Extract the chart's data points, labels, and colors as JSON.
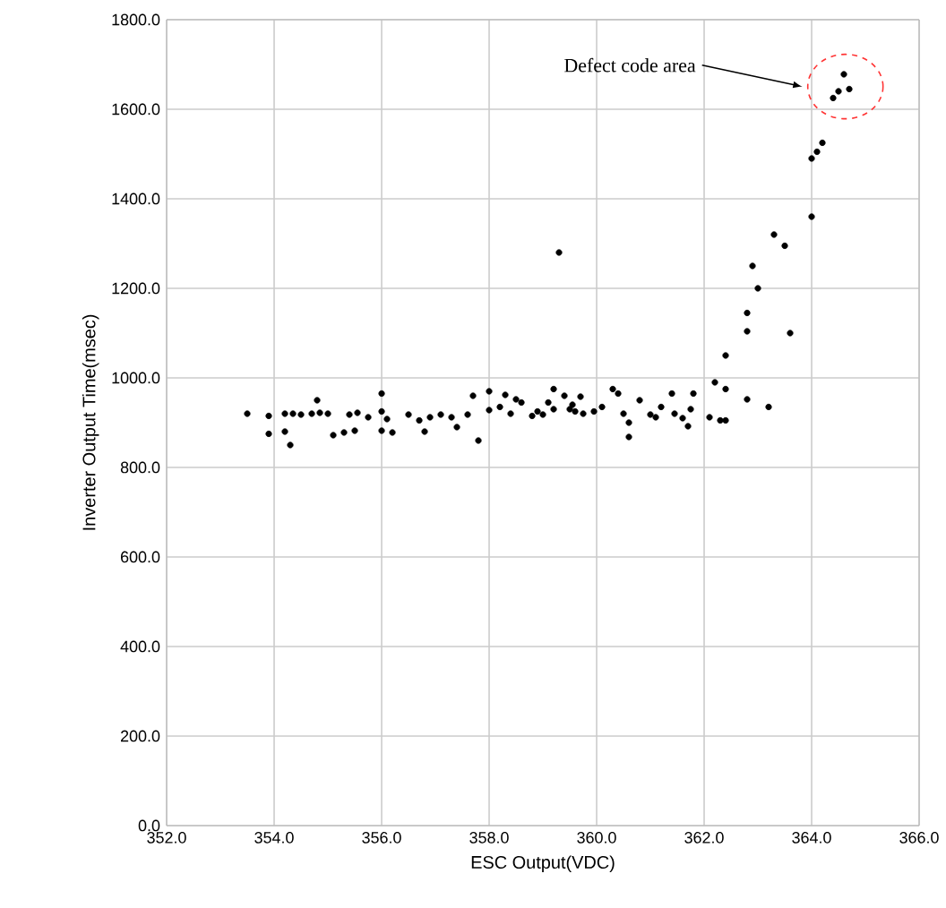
{
  "chart_data": {
    "type": "scatter",
    "xlabel": "ESC Output(VDC)",
    "ylabel": "Inverter Output Time(msec)",
    "x": [
      353.5,
      353.9,
      353.9,
      354.2,
      354.3,
      354.2,
      354.35,
      354.5,
      354.8,
      354.7,
      354.85,
      355.0,
      355.1,
      355.3,
      355.5,
      355.4,
      355.55,
      355.75,
      356.0,
      356.0,
      356.0,
      356.2,
      356.1,
      356.5,
      356.7,
      356.9,
      357.1,
      357.3,
      357.6,
      356.8,
      357.4,
      357.7,
      358.0,
      358.3,
      357.8,
      358.0,
      358.2,
      358.4,
      358.5,
      358.6,
      358.8,
      359.0,
      359.2,
      358.9,
      359.2,
      359.1,
      359.4,
      359.5,
      359.6,
      359.55,
      359.7,
      359.75,
      359.95,
      360.1,
      360.3,
      360.4,
      360.5,
      360.6,
      360.8,
      361.0,
      361.1,
      361.2,
      360.6,
      361.4,
      361.45,
      361.6,
      361.75,
      361.8,
      361.7,
      362.1,
      362.3,
      362.4,
      362.2,
      362.4,
      362.4,
      362.8,
      362.8,
      363.2,
      362.8,
      362.9,
      363.0,
      363.3,
      363.5,
      363.6,
      364.0,
      364.0,
      364.1,
      364.2,
      364.4,
      364.5,
      364.7,
      364.6,
      359.3
    ],
    "values": [
      920,
      915,
      875,
      880,
      850,
      920,
      920,
      918,
      950,
      920,
      922,
      920,
      872,
      878,
      882,
      918,
      922,
      912,
      925,
      965,
      882,
      878,
      908,
      918,
      905,
      912,
      918,
      912,
      918,
      880,
      890,
      960,
      970,
      962,
      860,
      928,
      935,
      920,
      952,
      945,
      915,
      918,
      975,
      925,
      930,
      945,
      960,
      930,
      925,
      940,
      958,
      920,
      925,
      935,
      975,
      965,
      920,
      900,
      950,
      918,
      912,
      935,
      868,
      965,
      920,
      910,
      930,
      965,
      892,
      912,
      905,
      905,
      990,
      975,
      1050,
      1104,
      952,
      935,
      1145,
      1250,
      1200,
      1320,
      1295,
      1100,
      1360,
      1490,
      1505,
      1525,
      1625,
      1640,
      1645,
      1678,
      1280
    ],
    "color": "#000000",
    "marker": "circle",
    "xlim": [
      352,
      366
    ],
    "ylim": [
      0,
      1800
    ],
    "xticks": [
      {
        "value": 352,
        "label": "352.0"
      },
      {
        "value": 354,
        "label": "354.0"
      },
      {
        "value": 356,
        "label": "356.0"
      },
      {
        "value": 358,
        "label": "358.0"
      },
      {
        "value": 360,
        "label": "360.0"
      },
      {
        "value": 362,
        "label": "362.0"
      },
      {
        "value": 364,
        "label": "364.0"
      },
      {
        "value": 366,
        "label": "366.0"
      }
    ],
    "yticks": [
      {
        "value": 0,
        "label": "0.0"
      },
      {
        "value": 200,
        "label": "200.0"
      },
      {
        "value": 400,
        "label": "400.0"
      },
      {
        "value": 600,
        "label": "600.0"
      },
      {
        "value": 800,
        "label": "800.0"
      },
      {
        "value": 1000,
        "label": "1000.0"
      },
      {
        "value": 1200,
        "label": "1200.0"
      },
      {
        "value": 1400,
        "label": "1400.0"
      },
      {
        "value": 1600,
        "label": "1600.0"
      },
      {
        "value": 1800,
        "label": "1800.0"
      }
    ],
    "grid": true,
    "annotations": [
      "Defect code area"
    ]
  }
}
